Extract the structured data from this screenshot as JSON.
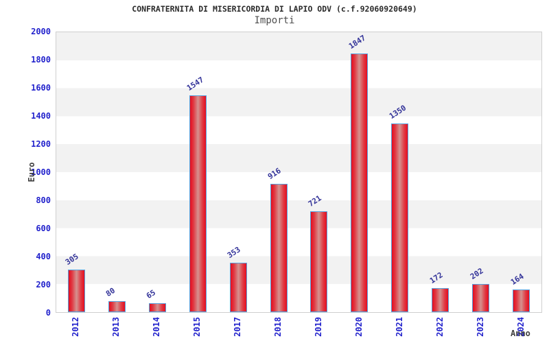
{
  "header": {
    "title": "CONFRATERNITA DI MISERICORDIA DI LAPIO ODV (c.f.92060920649)",
    "subtitle": "Importi"
  },
  "chart_data": {
    "type": "bar",
    "title": "CONFRATERNITA DI MISERICORDIA DI LAPIO ODV (c.f.92060920649)",
    "subtitle": "Importi",
    "xlabel": "Anno",
    "ylabel": "Euro",
    "categories": [
      "2012",
      "2013",
      "2014",
      "2015",
      "2017",
      "2018",
      "2019",
      "2020",
      "2021",
      "2022",
      "2023",
      "2024"
    ],
    "values": [
      305,
      80,
      65,
      1547,
      353,
      916,
      721,
      1847,
      1350,
      172,
      202,
      164
    ],
    "ylim": [
      0,
      2000
    ],
    "ytick_step": 200,
    "yticks": [
      0,
      200,
      400,
      600,
      800,
      1000,
      1200,
      1400,
      1600,
      1800,
      2000
    ],
    "grid": "alternating horizontal gray/white bands of 200",
    "legend": "none",
    "value_labels": "above each bar, rotated",
    "colors": {
      "bar_fill": "#e50d1f",
      "bar_highlight": "#d5928f",
      "bar_border": "#55a1de",
      "tick_label": "#2222cc",
      "value_label": "#333399",
      "axis_title": "#3f3f3f",
      "band": "#f2f2f2",
      "plot_border": "#cfcfcf",
      "background": "#ffffff"
    }
  }
}
